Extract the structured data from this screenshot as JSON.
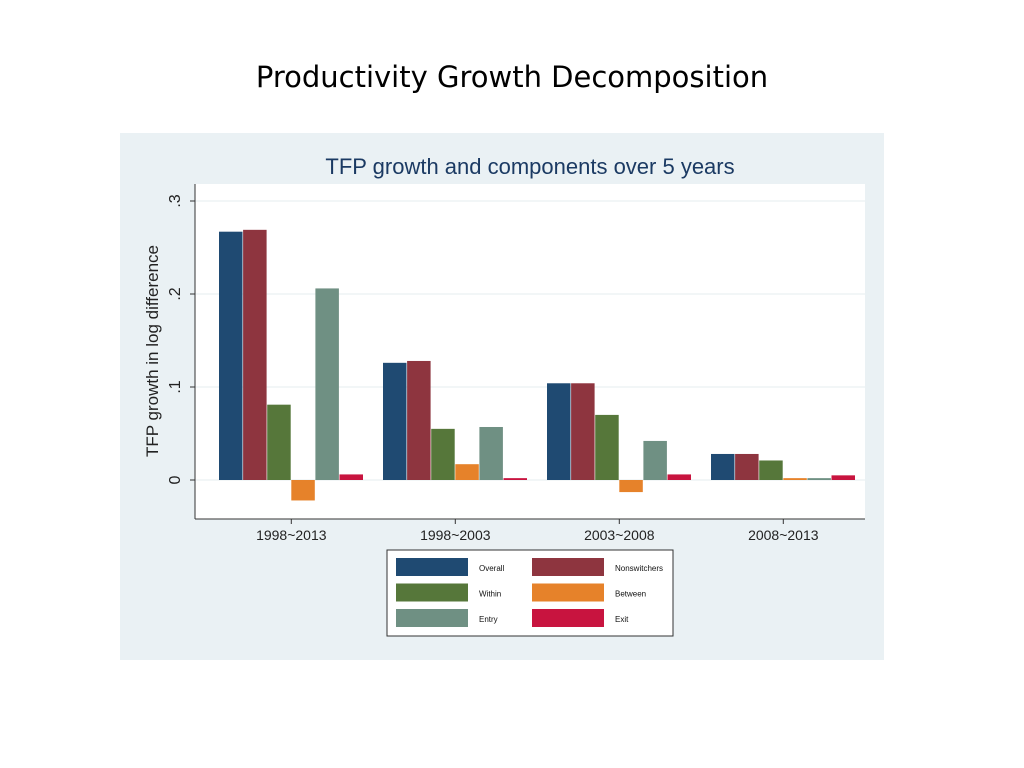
{
  "slide": {
    "title": "Productivity Growth Decomposition"
  },
  "chart_data": {
    "type": "bar",
    "title": "TFP growth and components over 5 years",
    "xlabel": "",
    "ylabel": "TFP growth in log difference",
    "ylim": [
      -0.04,
      0.3
    ],
    "yticks": [
      0,
      0.1,
      0.2,
      0.3
    ],
    "ytick_labels": [
      "0",
      ".1",
      ".2",
      ".3"
    ],
    "grid": true,
    "legend_position": "bottom",
    "categories": [
      "1998~2013",
      "1998~2003",
      "2003~2008",
      "2008~2013"
    ],
    "series": [
      {
        "name": "Overall",
        "color": "#1f4a72",
        "values": [
          0.267,
          0.126,
          0.104,
          0.028
        ]
      },
      {
        "name": "Nonswitchers",
        "color": "#8e353f",
        "values": [
          0.269,
          0.128,
          0.104,
          0.028
        ]
      },
      {
        "name": "Within",
        "color": "#56773a",
        "values": [
          0.081,
          0.055,
          0.07,
          0.021
        ]
      },
      {
        "name": "Between",
        "color": "#e6822a",
        "values": [
          -0.022,
          0.017,
          -0.013,
          0.002
        ]
      },
      {
        "name": "Entry",
        "color": "#6f9083",
        "values": [
          0.206,
          0.057,
          0.042,
          0.002
        ]
      },
      {
        "name": "Exit",
        "color": "#c8143f",
        "values": [
          0.006,
          0.002,
          0.006,
          0.005
        ]
      }
    ],
    "legend_order": [
      "Overall",
      "Nonswitchers",
      "Within",
      "Between",
      "Entry",
      "Exit"
    ],
    "colors": {
      "figure_bg": "#eaf1f4",
      "plot_bg": "#ffffff",
      "grid": "#e6ecef",
      "title": "#1b3a63",
      "axis_text": "#222222"
    }
  }
}
